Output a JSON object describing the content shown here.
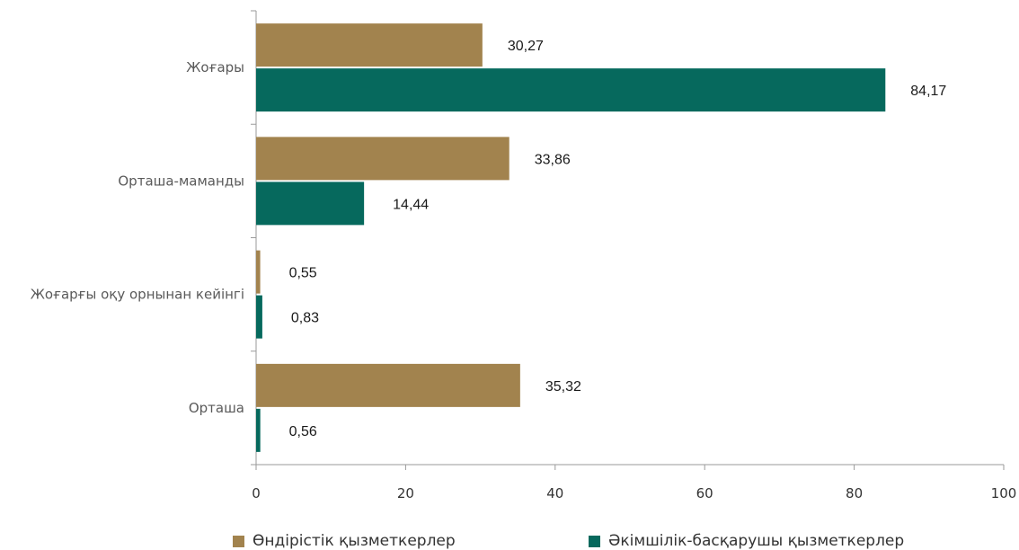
{
  "chart_data": {
    "type": "bar",
    "orientation": "horizontal",
    "categories": [
      "Жоғары",
      "Орташа-маманды",
      "Жоғарғы оқу орнынан кейінгі",
      "Орташа"
    ],
    "series": [
      {
        "name": "Өндірістік қызметкерлер",
        "color": "#a2834e",
        "values": [
          30.27,
          33.86,
          0.55,
          35.32
        ],
        "labels": [
          "30,27",
          "33,86",
          "0,55",
          "35,32"
        ]
      },
      {
        "name": "Әкімшілік-басқарушы қызметкерлер",
        "color": "#06695d",
        "values": [
          84.17,
          14.44,
          0.83,
          0.56
        ],
        "labels": [
          "84,17",
          "14,44",
          "0,83",
          "0,56"
        ]
      }
    ],
    "xlim": [
      0,
      100
    ],
    "xticks": [
      "0",
      "20",
      "40",
      "60",
      "80",
      "100"
    ],
    "grid": false,
    "legend": "bottom"
  }
}
